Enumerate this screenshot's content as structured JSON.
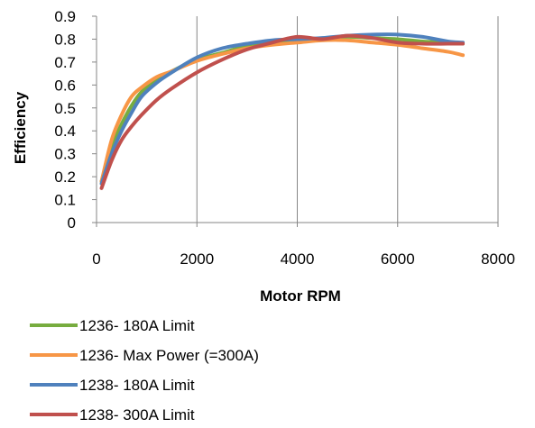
{
  "chart_data": {
    "type": "line",
    "title": "",
    "xlabel": "Motor RPM",
    "ylabel": "Efficiency",
    "xlim": [
      0,
      8000
    ],
    "ylim": [
      0,
      0.9
    ],
    "x_ticks": [
      0,
      2000,
      4000,
      6000,
      8000
    ],
    "y_ticks": [
      0,
      0.1,
      0.2,
      0.3,
      0.4,
      0.5,
      0.6,
      0.7,
      0.8,
      0.9
    ],
    "x_tick_labels": [
      "0",
      "2000",
      "4000",
      "6000",
      "8000"
    ],
    "y_tick_labels": [
      "0",
      "0.1",
      "0.2",
      "0.3",
      "0.4",
      "0.5",
      "0.6",
      "0.7",
      "0.8",
      "0.9"
    ],
    "grid": {
      "vertical": true,
      "horizontal": false
    },
    "legend_position": "bottom",
    "series": [
      {
        "name": "1236- 180A Limit",
        "color": "#77AC3F",
        "x": [
          100,
          300,
          500,
          700,
          900,
          1200,
          1500,
          2000,
          2500,
          3000,
          3500,
          4000,
          4500,
          5000,
          5500,
          6000,
          6500,
          7000,
          7300
        ],
        "y": [
          0.18,
          0.33,
          0.43,
          0.51,
          0.57,
          0.62,
          0.66,
          0.71,
          0.74,
          0.77,
          0.785,
          0.79,
          0.8,
          0.81,
          0.805,
          0.8,
          0.79,
          0.785,
          0.78
        ]
      },
      {
        "name": "1236- Max Power (=300A)",
        "color": "#F79646",
        "x": [
          100,
          300,
          500,
          700,
          900,
          1200,
          1500,
          2000,
          2500,
          3000,
          3500,
          4000,
          4500,
          5000,
          5500,
          6000,
          6500,
          7000,
          7300
        ],
        "y": [
          0.18,
          0.36,
          0.47,
          0.55,
          0.59,
          0.635,
          0.66,
          0.705,
          0.735,
          0.76,
          0.775,
          0.785,
          0.795,
          0.795,
          0.785,
          0.775,
          0.76,
          0.745,
          0.73
        ]
      },
      {
        "name": "1238- 180A Limit",
        "color": "#4F81BD",
        "x": [
          100,
          300,
          500,
          700,
          900,
          1200,
          1500,
          2000,
          2500,
          3000,
          3500,
          4000,
          4500,
          5000,
          5500,
          6000,
          6500,
          7000,
          7300
        ],
        "y": [
          0.17,
          0.3,
          0.4,
          0.48,
          0.55,
          0.61,
          0.655,
          0.72,
          0.76,
          0.78,
          0.795,
          0.8,
          0.805,
          0.815,
          0.82,
          0.82,
          0.81,
          0.79,
          0.785
        ]
      },
      {
        "name": "1238- 300A Limit",
        "color": "#C0504D",
        "x": [
          100,
          300,
          500,
          700,
          900,
          1200,
          1500,
          2000,
          2500,
          3000,
          3500,
          4000,
          4500,
          5000,
          5500,
          6000,
          6500,
          7000,
          7300
        ],
        "y": [
          0.15,
          0.27,
          0.36,
          0.42,
          0.47,
          0.535,
          0.585,
          0.655,
          0.71,
          0.755,
          0.785,
          0.81,
          0.8,
          0.815,
          0.805,
          0.785,
          0.78,
          0.78,
          0.78
        ]
      }
    ]
  }
}
